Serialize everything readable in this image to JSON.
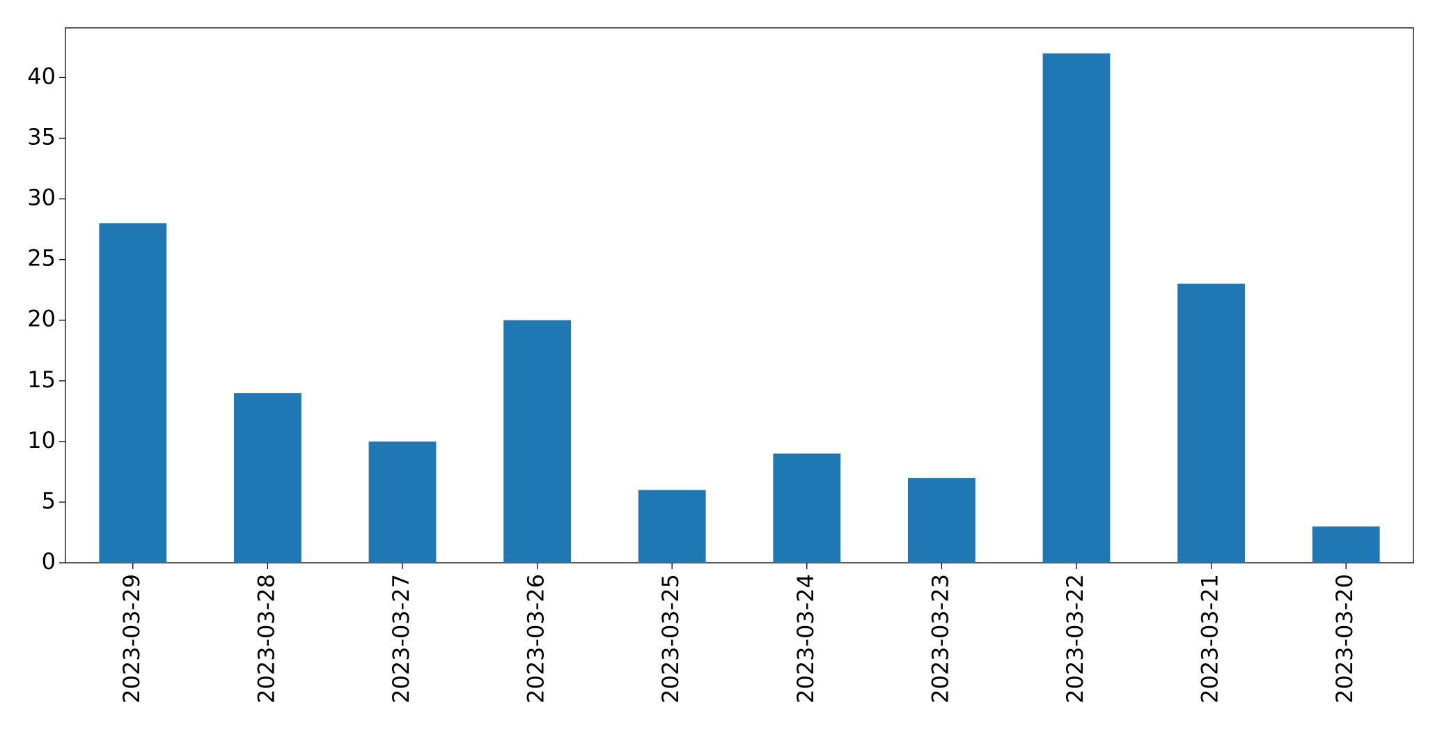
{
  "chart_data": {
    "type": "bar",
    "categories": [
      "2023-03-29",
      "2023-03-28",
      "2023-03-27",
      "2023-03-26",
      "2023-03-25",
      "2023-03-24",
      "2023-03-23",
      "2023-03-22",
      "2023-03-21",
      "2023-03-20"
    ],
    "values": [
      28,
      14,
      10,
      20,
      6,
      9,
      7,
      42,
      23,
      3
    ],
    "color": "#1f77b4",
    "ylim": [
      0,
      44.1
    ],
    "yticks": [
      0,
      5,
      10,
      15,
      20,
      25,
      30,
      35,
      40
    ],
    "grid": false
  }
}
